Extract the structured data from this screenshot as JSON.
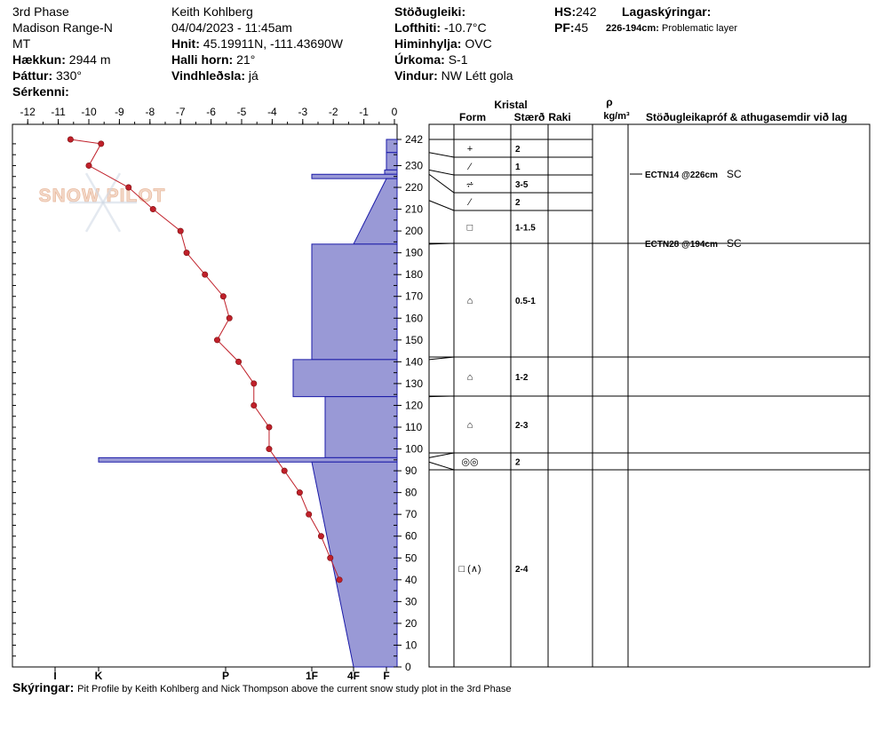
{
  "header": {
    "col1": {
      "location": "3rd Phase",
      "range": "Madison Range-N",
      "state": "MT",
      "elevation_label": "Hækkun:",
      "elevation": "2944 m",
      "aspect_label": "Þáttur:",
      "aspect": "330°",
      "specifics_label": "Sérkenni:"
    },
    "col2": {
      "observer": "Keith Kohlberg",
      "datetime": "04/04/2023 - 11:45am",
      "coords_label": "Hnit:",
      "coords": "45.19911N, -111.43690W",
      "slope_label": "Halli horn:",
      "slope": "21°",
      "wind_loading_label": "Vindhleðsla:",
      "wind_loading": "já"
    },
    "col3": {
      "stability_label": "Stöðugleiki:",
      "air_temp_label": "Lofthiti:",
      "air_temp": "-10.7°C",
      "sky_label": "Himinhylja:",
      "sky": "OVC",
      "precip_label": "Úrkoma:",
      "precip": "S-1",
      "wind_label": "Vindur:",
      "wind": "NW Létt gola"
    },
    "col4": {
      "hs_label": "HS:",
      "hs": "242",
      "pf_label": "PF:",
      "pf": "45",
      "layer_notes_label": "Lagaskýringar:",
      "problem_layer": "226-194cm:",
      "problem_layer_text": "Problematic layer"
    }
  },
  "footer": {
    "label": "Skýringar:",
    "text": "Pit Profile by Keith Kohlberg and Nick Thompson above the current snow study plot in the 3rd Phase"
  },
  "watermark": "SNOW PILOT",
  "table_headers": {
    "crystal": "Kristal",
    "form": "Form",
    "size": "Stærð",
    "moisture": "Raki",
    "rho": "ρ",
    "density_unit": "kg/m³",
    "tests": "Stöðugleikapróf & athugasemdir við lag"
  },
  "colors": {
    "hardness_fill": "#9999d6",
    "hardness_stroke": "#1a1aa8",
    "temp": "#c0202a"
  },
  "chart_data": {
    "type": "snow_profile",
    "y_ticks": [
      0,
      10,
      20,
      30,
      40,
      50,
      60,
      70,
      80,
      90,
      100,
      110,
      120,
      130,
      140,
      150,
      160,
      170,
      180,
      190,
      200,
      210,
      220,
      230,
      242
    ],
    "temp_ticks": [
      "-12",
      "-11",
      "-10",
      "-9",
      "-8",
      "-7",
      "-6",
      "-5",
      "-4",
      "-3",
      "-2",
      "-1",
      "0"
    ],
    "hardness_ticks": [
      "I",
      "K",
      "P",
      "1F",
      "4F",
      "F"
    ],
    "temperature_profile": [
      {
        "h": 242,
        "t": -10.6
      },
      {
        "h": 240,
        "t": -9.6
      },
      {
        "h": 230,
        "t": -10.0
      },
      {
        "h": 220,
        "t": -8.7
      },
      {
        "h": 210,
        "t": -7.9
      },
      {
        "h": 200,
        "t": -7.0
      },
      {
        "h": 190,
        "t": -6.8
      },
      {
        "h": 180,
        "t": -6.2
      },
      {
        "h": 170,
        "t": -5.6
      },
      {
        "h": 160,
        "t": -5.4
      },
      {
        "h": 150,
        "t": -5.8
      },
      {
        "h": 140,
        "t": -5.1
      },
      {
        "h": 130,
        "t": -4.6
      },
      {
        "h": 120,
        "t": -4.6
      },
      {
        "h": 110,
        "t": -4.1
      },
      {
        "h": 100,
        "t": -4.1
      },
      {
        "h": 90,
        "t": -3.6
      },
      {
        "h": 80,
        "t": -3.1
      },
      {
        "h": 70,
        "t": -2.8
      },
      {
        "h": 60,
        "t": -2.4
      },
      {
        "h": 50,
        "t": -2.1
      },
      {
        "h": 40,
        "t": -1.8
      }
    ],
    "hardness_profile": [
      {
        "top": 242,
        "bottom": 236,
        "hardness": "F"
      },
      {
        "top": 236,
        "bottom": 228,
        "hardness": "F"
      },
      {
        "top": 228,
        "bottom": 226,
        "hardness": "F+"
      },
      {
        "top": 226,
        "bottom": 224,
        "hardness": "1F"
      },
      {
        "top": 224,
        "bottom": 194,
        "hardness": "4F",
        "slope_to": "F"
      },
      {
        "top": 194,
        "bottom": 141,
        "hardness": "1F"
      },
      {
        "top": 141,
        "bottom": 124,
        "hardness": "1F-"
      },
      {
        "top": 124,
        "bottom": 96,
        "hardness": "1F+"
      },
      {
        "top": 96,
        "bottom": 94,
        "hardness": "K"
      },
      {
        "top": 94,
        "bottom": 0,
        "hardness": "1F",
        "slope_to": "4F"
      }
    ],
    "layers": [
      {
        "top": 242,
        "bottom": 236,
        "form": "+",
        "size": "2"
      },
      {
        "top": 236,
        "bottom": 228,
        "form": "⁄",
        "size": "1"
      },
      {
        "top": 228,
        "bottom": 226,
        "form": "⩫",
        "size": "3-5"
      },
      {
        "top": 226,
        "bottom": 214,
        "form": "⁄",
        "size": "2"
      },
      {
        "top": 214,
        "bottom": 194,
        "form": "□",
        "size": "1-1.5"
      },
      {
        "top": 194,
        "bottom": 141,
        "form": "⌂",
        "size": "0.5-1"
      },
      {
        "top": 141,
        "bottom": 124,
        "form": "⌂",
        "size": "1-2"
      },
      {
        "top": 124,
        "bottom": 96,
        "form": "⌂",
        "size": "2-3"
      },
      {
        "top": 96,
        "bottom": 94,
        "form": "◎◎",
        "size": "2"
      },
      {
        "top": 94,
        "bottom": 0,
        "form": "□ (∧)",
        "size": "2-4"
      }
    ],
    "tests": [
      {
        "h": 226,
        "label": "ECTN14 @226cm",
        "code": "SC"
      },
      {
        "h": 194,
        "label": "ECTN28 @194cm",
        "code": "SC"
      }
    ]
  }
}
